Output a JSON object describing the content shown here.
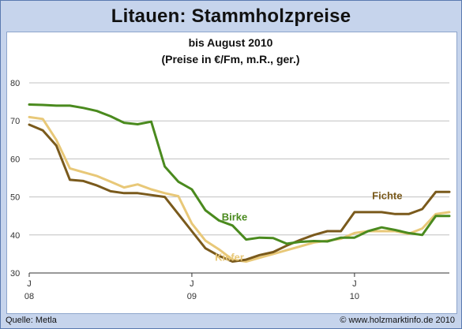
{
  "title": "Litauen: Stammholzpreise",
  "footer": {
    "source": "Quelle: Metla",
    "credit": "© www.holzmarktinfo.de 2010"
  },
  "colors": {
    "frame_bg": "#c6d4ec",
    "grid": "#c0c0c0",
    "birke": "#4a8a1e",
    "fichte": "#7a5a1c",
    "kiefer": "#e8c878"
  },
  "chart_data": {
    "type": "line",
    "title": "bis August 2010",
    "subtitle": "(Preise in €/Fm, m.R., ger.)",
    "ylim": [
      30,
      80
    ],
    "yticks": [
      30,
      40,
      50,
      60,
      70,
      80
    ],
    "xlim": [
      0,
      31
    ],
    "x_ticks": [
      {
        "x": 0,
        "month": "J",
        "year": "08"
      },
      {
        "x": 12,
        "month": "J",
        "year": "09"
      },
      {
        "x": 24,
        "month": "J",
        "year": "10"
      }
    ],
    "x": [
      0,
      1,
      2,
      3,
      4,
      5,
      6,
      7,
      8,
      9,
      10,
      11,
      12,
      13,
      14,
      15,
      16,
      17,
      18,
      19,
      20,
      21,
      22,
      23,
      24,
      25,
      26,
      27,
      28,
      29,
      30,
      31
    ],
    "series": [
      {
        "name": "Birke",
        "color_key": "birke",
        "values": [
          74.3,
          74.2,
          74.0,
          74.0,
          73.4,
          72.6,
          71.2,
          69.5,
          69.1,
          69.8,
          58.0,
          54.0,
          52.0,
          46.5,
          43.8,
          42.5,
          38.8,
          39.3,
          39.2,
          37.7,
          38.2,
          38.4,
          38.3,
          39.3,
          39.3,
          41.0,
          42.0,
          41.3,
          40.5,
          40.0,
          45.0,
          45.0
        ]
      },
      {
        "name": "Fichte",
        "color_key": "fichte",
        "values": [
          69.0,
          67.5,
          63.5,
          54.5,
          54.2,
          53.0,
          51.5,
          51.0,
          51.0,
          50.5,
          50.0,
          45.5,
          41.0,
          36.5,
          34.5,
          33.0,
          33.5,
          34.7,
          35.5,
          37.2,
          38.7,
          40.0,
          41.0,
          41.0,
          46.0,
          46.0,
          46.0,
          45.5,
          45.5,
          46.8,
          51.3,
          51.3
        ]
      },
      {
        "name": "Kiefer",
        "color_key": "kiefer",
        "values": [
          71.0,
          70.5,
          65.0,
          57.5,
          56.5,
          55.5,
          54.0,
          52.5,
          53.3,
          52.0,
          51.0,
          50.2,
          43.0,
          38.5,
          36.2,
          33.5,
          33.0,
          34.0,
          35.0,
          36.0,
          37.0,
          38.0,
          38.5,
          39.0,
          40.5,
          41.0,
          41.0,
          41.0,
          40.3,
          41.7,
          45.5,
          46.0
        ]
      }
    ],
    "annotations": [
      {
        "text": "Fichte",
        "color_key": "fichte",
        "at_x": 25.3,
        "at_y": 49.4
      },
      {
        "text": "Birke",
        "color_key": "birke",
        "at_x": 14.2,
        "at_y": 43.8
      },
      {
        "text": "Kiefer",
        "color_key": "kiefer",
        "at_x": 13.7,
        "at_y": 33.2
      }
    ],
    "grid": true
  }
}
